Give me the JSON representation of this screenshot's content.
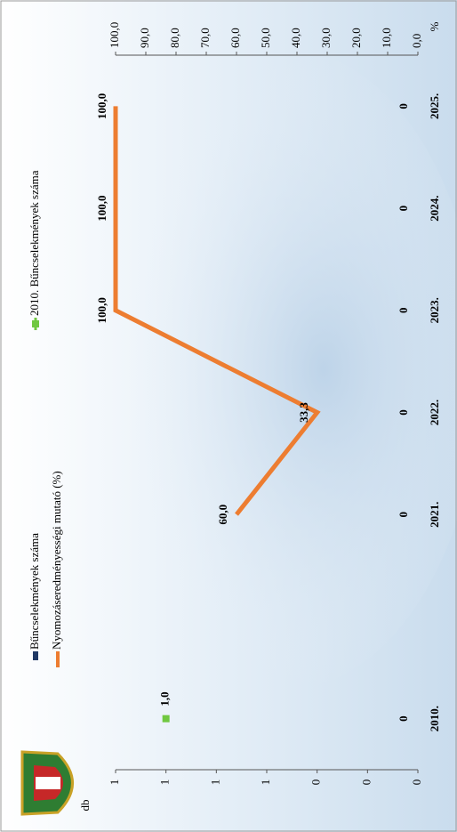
{
  "chart_data": {
    "type": "combo",
    "categories": [
      "2010.",
      null,
      "2021.",
      "2022.",
      "2023.",
      "2024.",
      "2025."
    ],
    "ylabel": "db",
    "y2label": "%",
    "ylim": [
      0,
      1.2
    ],
    "yticks": [
      {
        "value": 0,
        "label": "0"
      },
      {
        "value": 0.2,
        "label": "0"
      },
      {
        "value": 0.4,
        "label": "0"
      },
      {
        "value": 0.6,
        "label": "1"
      },
      {
        "value": 0.8,
        "label": "1"
      },
      {
        "value": 1.0,
        "label": "1"
      },
      {
        "value": 1.2,
        "label": "1"
      }
    ],
    "y2lim": [
      0,
      100
    ],
    "y2ticks": [
      {
        "value": 0,
        "label": "0,0"
      },
      {
        "value": 10,
        "label": "10,0"
      },
      {
        "value": 20,
        "label": "20,0"
      },
      {
        "value": 30,
        "label": "30,0"
      },
      {
        "value": 40,
        "label": "40,0"
      },
      {
        "value": 50,
        "label": "50,0"
      },
      {
        "value": 60,
        "label": "60,0"
      },
      {
        "value": 70,
        "label": "70,0"
      },
      {
        "value": 80,
        "label": "80,0"
      },
      {
        "value": 90,
        "label": "90,0"
      },
      {
        "value": 100,
        "label": "100,0"
      }
    ],
    "series": [
      {
        "name": "Bűncselekmények száma",
        "type": "bar",
        "color": "#1f3864",
        "values": [
          0,
          null,
          0,
          0,
          0,
          0,
          0
        ]
      },
      {
        "name": "Nyomozáseredményességi mutató (%)",
        "type": "line",
        "axis": "y2",
        "color": "#ed7d31",
        "values": [
          null,
          null,
          60.0,
          33.3,
          100.0,
          100.0,
          100.0
        ],
        "value_labels": [
          null,
          null,
          "60,0",
          "33,3",
          "100,0",
          "100,0",
          "100,0"
        ]
      },
      {
        "name": "2010. Bűncselekmények száma",
        "type": "marker",
        "color": "#70c840",
        "values": [
          1.0,
          null,
          null,
          null,
          null,
          null,
          null
        ],
        "value_labels": [
          "1,0",
          null,
          null,
          null,
          null,
          null,
          null
        ]
      }
    ]
  }
}
